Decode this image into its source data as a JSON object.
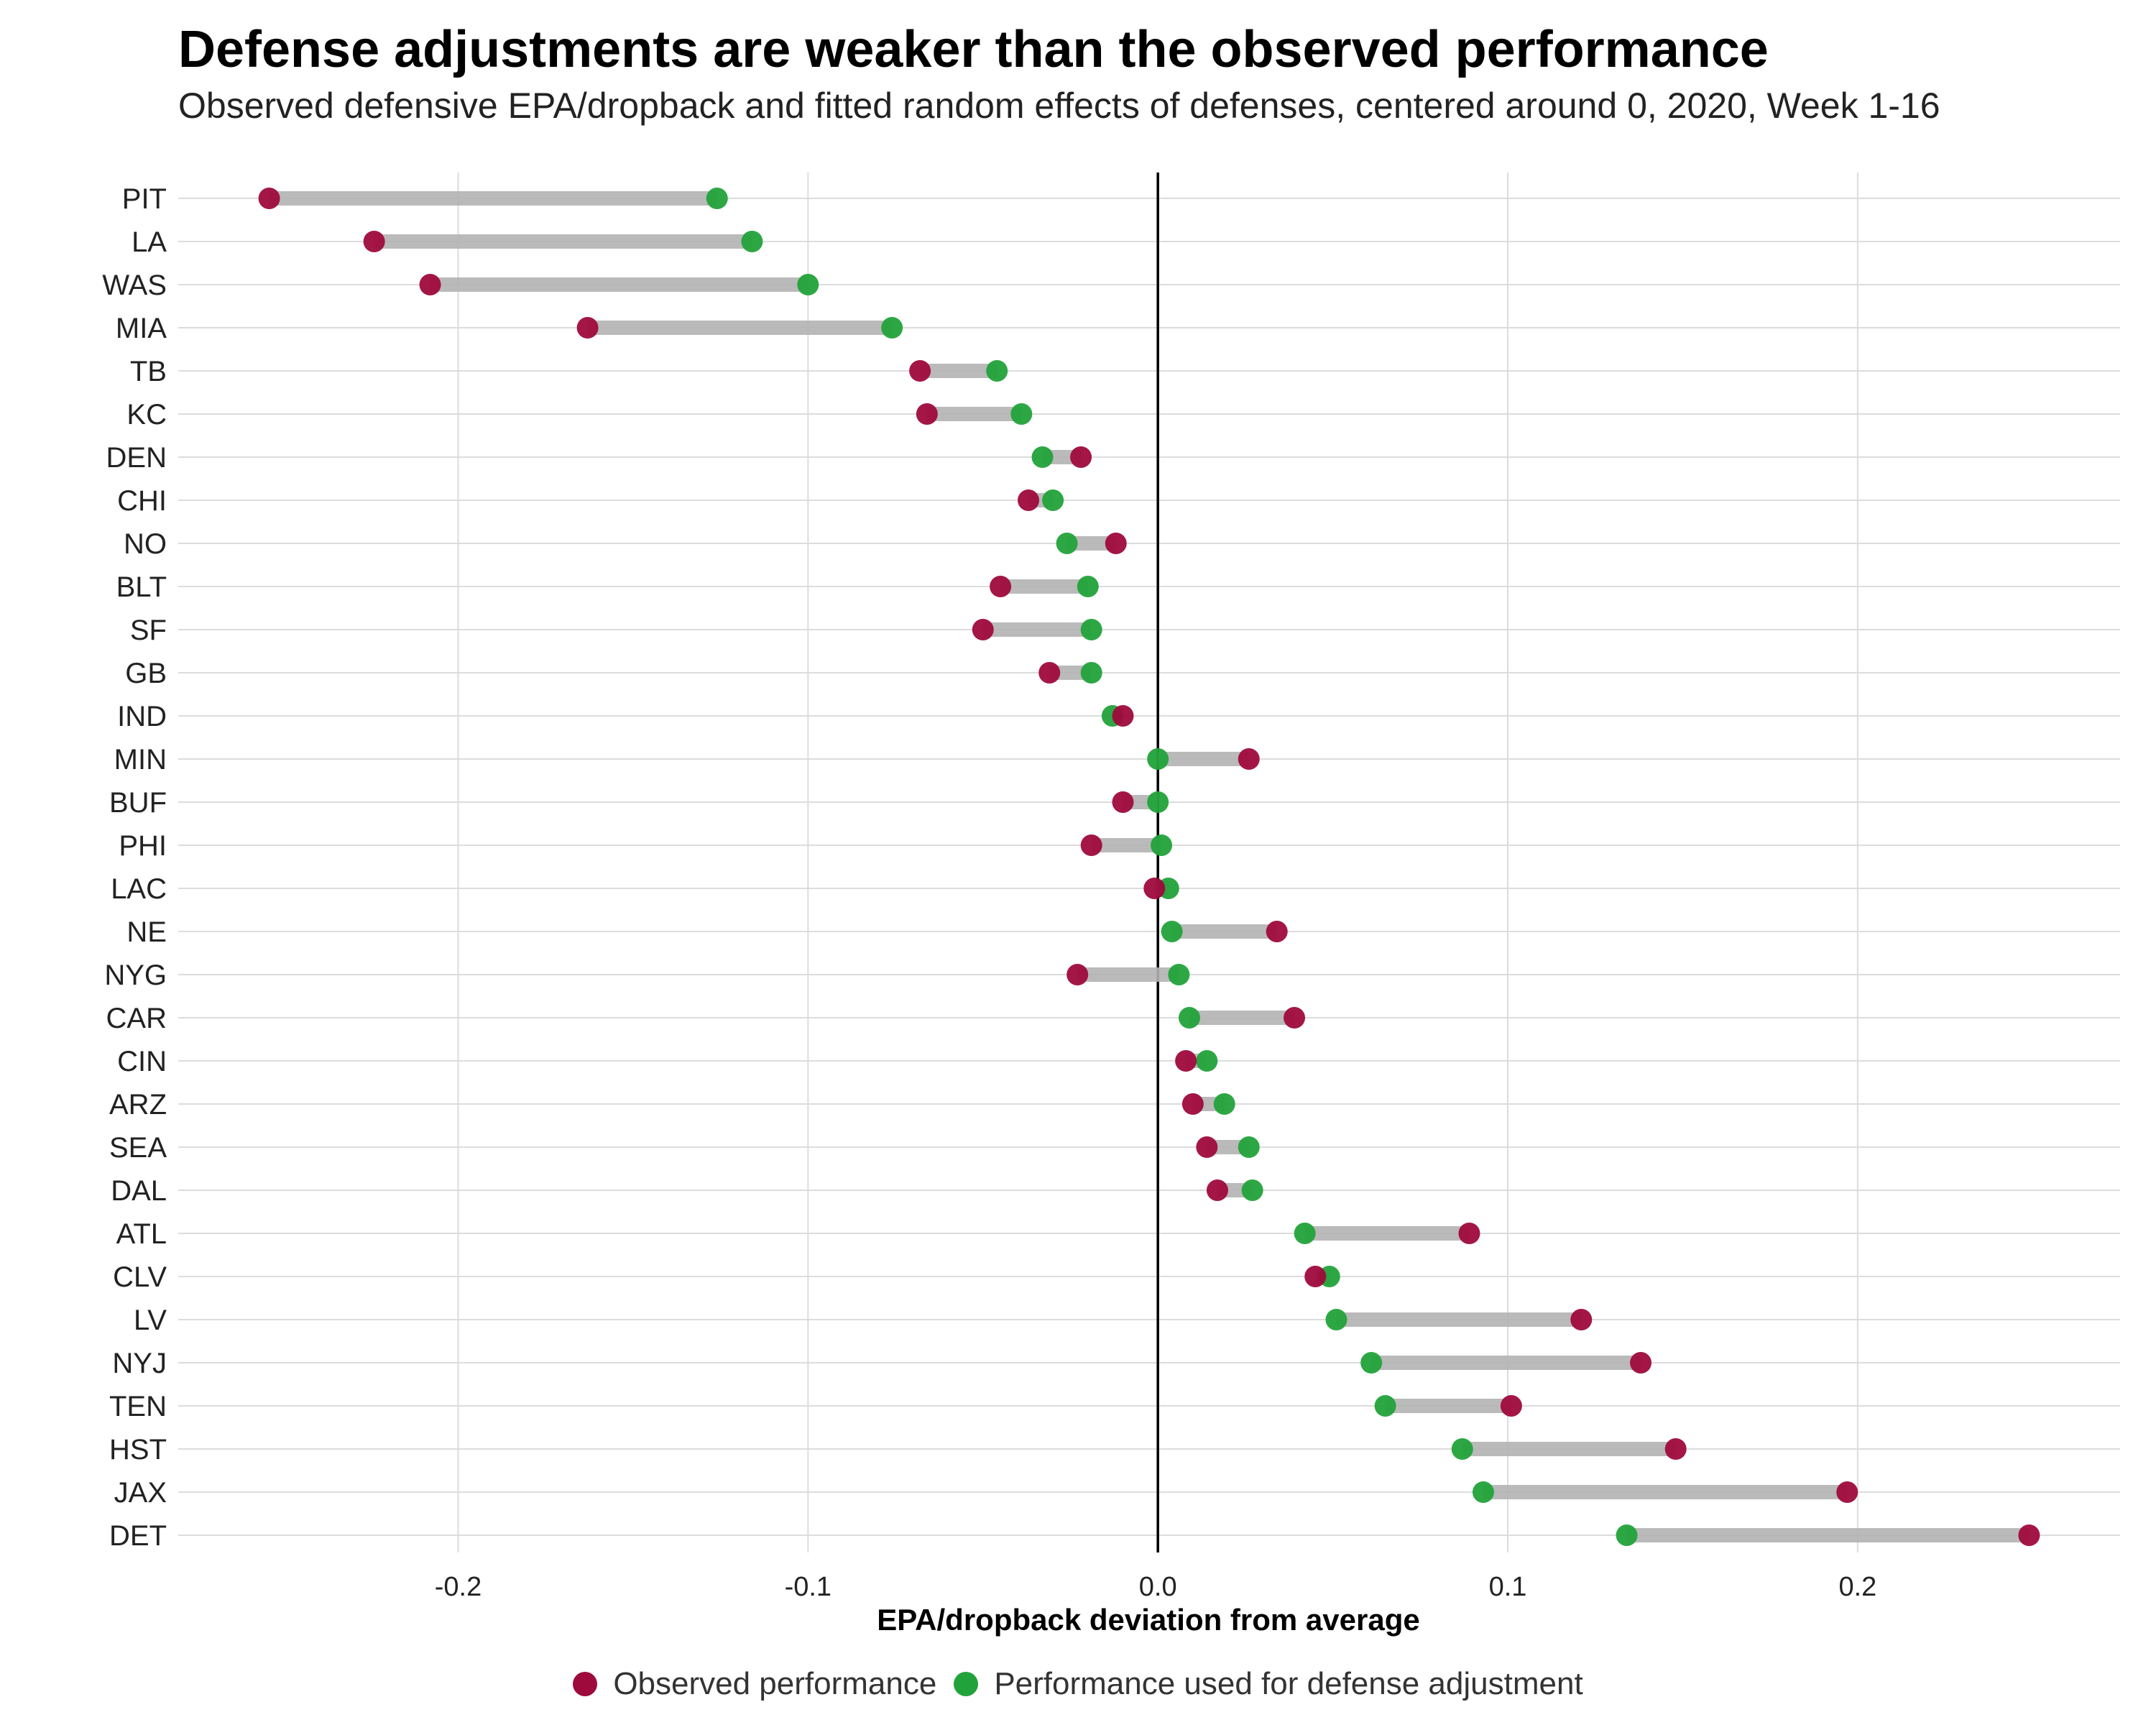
{
  "chart_data": {
    "type": "dumbbell",
    "title": "Defense adjustments are weaker than the observed performance",
    "subtitle": "Observed defensive EPA/dropback and fitted random effects of defenses, centered around 0, 2020, Week 1-16",
    "xlabel": "EPA/dropback deviation from average",
    "xlim": [
      -0.28,
      0.275
    ],
    "xticks": [
      -0.2,
      -0.1,
      0.0,
      0.1,
      0.2
    ],
    "xtick_labels": [
      "-0.2",
      "-0.1",
      "0.0",
      "0.1",
      "0.2"
    ],
    "grid": true,
    "legend_position": "bottom",
    "colors": {
      "observed": "#9e0a3c",
      "adjusted": "#22a23a",
      "connector": "#b3b3b3"
    },
    "series": [
      {
        "name": "Observed performance",
        "key": "observed"
      },
      {
        "name": "Performance used for defense adjustment",
        "key": "adjusted"
      }
    ],
    "teams": [
      {
        "team": "PIT",
        "observed": -0.254,
        "adjusted": -0.126
      },
      {
        "team": "LA",
        "observed": -0.224,
        "adjusted": -0.116
      },
      {
        "team": "WAS",
        "observed": -0.208,
        "adjusted": -0.1
      },
      {
        "team": "MIA",
        "observed": -0.163,
        "adjusted": -0.076
      },
      {
        "team": "TB",
        "observed": -0.068,
        "adjusted": -0.046
      },
      {
        "team": "KC",
        "observed": -0.066,
        "adjusted": -0.039
      },
      {
        "team": "DEN",
        "observed": -0.022,
        "adjusted": -0.033
      },
      {
        "team": "CHI",
        "observed": -0.037,
        "adjusted": -0.03
      },
      {
        "team": "NO",
        "observed": -0.012,
        "adjusted": -0.026
      },
      {
        "team": "BLT",
        "observed": -0.045,
        "adjusted": -0.02
      },
      {
        "team": "SF",
        "observed": -0.05,
        "adjusted": -0.019
      },
      {
        "team": "GB",
        "observed": -0.031,
        "adjusted": -0.019
      },
      {
        "team": "IND",
        "observed": -0.01,
        "adjusted": -0.013
      },
      {
        "team": "MIN",
        "observed": 0.026,
        "adjusted": 0.0
      },
      {
        "team": "BUF",
        "observed": -0.01,
        "adjusted": 0.0
      },
      {
        "team": "PHI",
        "observed": -0.019,
        "adjusted": 0.001
      },
      {
        "team": "LAC",
        "observed": -0.001,
        "adjusted": 0.003
      },
      {
        "team": "NE",
        "observed": 0.034,
        "adjusted": 0.004
      },
      {
        "team": "NYG",
        "observed": -0.023,
        "adjusted": 0.006
      },
      {
        "team": "CAR",
        "observed": 0.039,
        "adjusted": 0.009
      },
      {
        "team": "CIN",
        "observed": 0.008,
        "adjusted": 0.014
      },
      {
        "team": "ARZ",
        "observed": 0.01,
        "adjusted": 0.019
      },
      {
        "team": "SEA",
        "observed": 0.014,
        "adjusted": 0.026
      },
      {
        "team": "DAL",
        "observed": 0.017,
        "adjusted": 0.027
      },
      {
        "team": "ATL",
        "observed": 0.089,
        "adjusted": 0.042
      },
      {
        "team": "CLV",
        "observed": 0.045,
        "adjusted": 0.049
      },
      {
        "team": "LV",
        "observed": 0.121,
        "adjusted": 0.051
      },
      {
        "team": "NYJ",
        "observed": 0.138,
        "adjusted": 0.061
      },
      {
        "team": "TEN",
        "observed": 0.101,
        "adjusted": 0.065
      },
      {
        "team": "HST",
        "observed": 0.148,
        "adjusted": 0.087
      },
      {
        "team": "JAX",
        "observed": 0.197,
        "adjusted": 0.093
      },
      {
        "team": "DET",
        "observed": 0.249,
        "adjusted": 0.134
      }
    ]
  }
}
